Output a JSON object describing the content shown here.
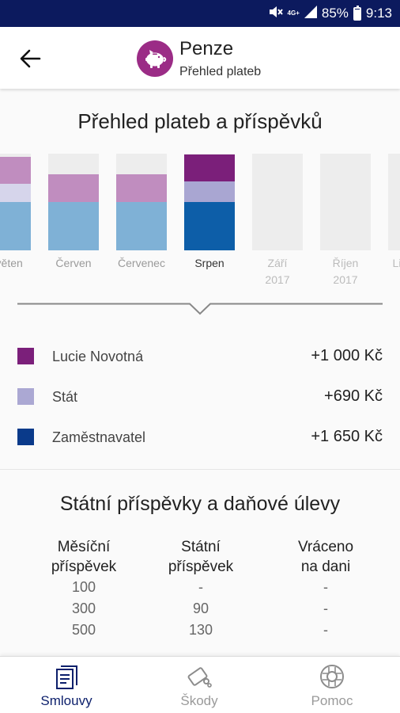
{
  "status_bar": {
    "network": "4G+",
    "battery": "85%",
    "time": "9:13",
    "icons": [
      "mute-icon",
      "signal-icon",
      "battery-icon"
    ]
  },
  "header": {
    "title": "Penze",
    "subtitle": "Přehled plateb",
    "back_icon": "arrow-left-icon",
    "avatar_icon": "piggy-bank-icon",
    "avatar_color": "#9b2c86"
  },
  "overview": {
    "title": "Přehled plateb a příspěvků",
    "months": [
      {
        "label": "Květen",
        "year": "",
        "selected": false,
        "future": false,
        "segments": {
          "employee": 0.28,
          "state": 0.19,
          "employer": 0.5
        }
      },
      {
        "label": "Červen",
        "year": "",
        "selected": false,
        "future": false,
        "segments": {
          "employee": 0.29,
          "state": 0.0,
          "employer": 0.5
        }
      },
      {
        "label": "Červenec",
        "year": "",
        "selected": false,
        "future": false,
        "segments": {
          "employee": 0.29,
          "state": 0.0,
          "employer": 0.5
        }
      },
      {
        "label": "Srpen",
        "year": "",
        "selected": true,
        "future": false,
        "segments": {
          "employee": 0.28,
          "state": 0.21,
          "employer": 0.5
        }
      },
      {
        "label": "Září",
        "year": "2017",
        "selected": false,
        "future": true,
        "segments": {
          "employee": 0,
          "state": 0,
          "employer": 0
        }
      },
      {
        "label": "Říjen",
        "year": "2017",
        "selected": false,
        "future": true,
        "segments": {
          "employee": 0,
          "state": 0,
          "employer": 0
        }
      },
      {
        "label": "Listopad",
        "year": "",
        "selected": false,
        "future": true,
        "segments": {
          "employee": 0,
          "state": 0,
          "employer": 0
        }
      }
    ],
    "colors": {
      "employee": "#7b1f7a",
      "state": "#a9a6d2",
      "employer": "#0a3a8a",
      "employee_light": "#c08dbf",
      "state_light": "#d6d5eb",
      "employer_light": "#7fb1d6",
      "employer_selected": "#0d5ea8",
      "state_selected": "#a9a6d2",
      "employee_selected": "#7b1f7a",
      "empty": "#ededed"
    },
    "legend": [
      {
        "name": "Lucie Novotná",
        "value": "+1 000 Kč",
        "color": "#7b1f7a"
      },
      {
        "name": "Stát",
        "value": "+690 Kč",
        "color": "#aba8d3"
      },
      {
        "name": "Zaměstnavatel",
        "value": "+1 650 Kč",
        "color": "#0a3a8a"
      }
    ]
  },
  "tax": {
    "title": "Státní příspěvky a daňové úlevy",
    "columns": [
      {
        "header_line1": "Měsíční",
        "header_line2": "příspěvek",
        "cells": [
          "100",
          "300",
          "500"
        ]
      },
      {
        "header_line1": "Státní",
        "header_line2": "příspěvek",
        "cells": [
          "-",
          "90",
          "130"
        ]
      },
      {
        "header_line1": "Vráceno",
        "header_line2": "na dani",
        "cells": [
          "-",
          "-",
          "-"
        ]
      }
    ]
  },
  "bottom_nav": {
    "items": [
      {
        "label": "Smlouvy",
        "icon": "contracts-icon",
        "active": true
      },
      {
        "label": "Škody",
        "icon": "damage-icon",
        "active": false
      },
      {
        "label": "Pomoc",
        "icon": "lifebuoy-icon",
        "active": false
      }
    ],
    "active_color": "#0c1f6b"
  }
}
